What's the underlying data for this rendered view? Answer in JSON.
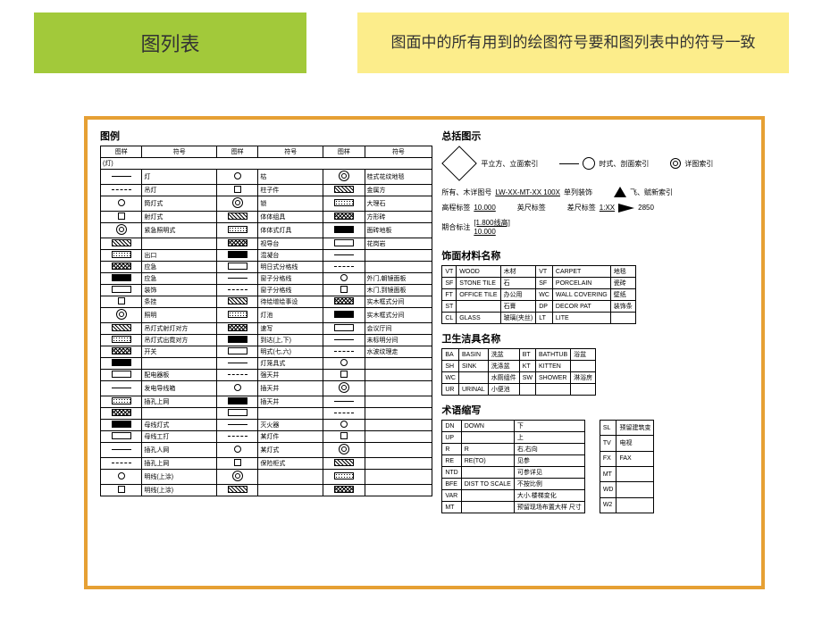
{
  "header": {
    "title_left": "图列表",
    "title_right": "图面中的所有用到的绘图符号要和图列表中的符号一致"
  },
  "legend": {
    "title": "图例",
    "headers": [
      "图样",
      "符号",
      "图样",
      "符号",
      "图样",
      "符号"
    ],
    "groups": [
      {
        "h": "(灯)",
        "rows": [
          [
            "",
            "灯",
            "",
            "枯",
            "",
            "桂式花纹地毯"
          ],
          [
            "",
            "吊灯",
            "",
            "柱子件",
            "",
            "金属方"
          ],
          [
            "",
            "筒灯式",
            "",
            "锁",
            "",
            "大理石"
          ],
          [
            "",
            "射灯式",
            "",
            "体体组具",
            "",
            "方形砖"
          ],
          [
            "",
            "紧急照明式",
            "",
            "体体式灯具",
            "",
            "面砖地板"
          ],
          [
            "(挂)",
            "",
            "",
            "视导台",
            "",
            "花岗岩"
          ],
          [
            "",
            "出口",
            "",
            "混凝台",
            "",
            ""
          ],
          [
            "",
            "应急",
            "",
            "明日式分格线",
            "(门空)",
            ""
          ],
          [
            "",
            "应急",
            "",
            "窗子分格线",
            "",
            "外门,朝镜面板"
          ],
          [
            "",
            "装饰",
            "",
            "窗子分格线",
            "",
            "木门,到镜面板"
          ]
        ]
      },
      {
        "h": "",
        "rows": [
          [
            "",
            "条挂",
            "",
            "待绘增绘事设",
            "",
            "实木框式分间"
          ],
          [
            "",
            "照明",
            "",
            "灯池",
            "",
            "实木框式分间"
          ],
          [
            "",
            "吊灯式射灯对方",
            "S",
            "速写",
            "",
            "会议厅间"
          ],
          [
            "",
            "吊灯式出霓对方",
            "至",
            "到达(上,下)",
            "",
            "未标明分间"
          ],
          [
            "",
            "开关",
            "",
            "明式(七,六)",
            "",
            "水波纹理走"
          ],
          [
            "(配室)",
            "",
            "",
            "灯笼具式",
            "(各型建筑材料缩写)",
            ""
          ],
          [
            "",
            "配电器板",
            "",
            "强天井",
            "",
            ""
          ],
          [
            "",
            "发电导线箱",
            "",
            "插天井",
            "",
            ""
          ]
        ]
      },
      {
        "h": "",
        "rows": [
          [
            "",
            "插孔上网",
            "",
            "插天井",
            "(装空)",
            ""
          ],
          [
            "",
            "",
            "(总线)",
            "",
            "",
            ""
          ],
          [
            "",
            "母线灯式",
            "",
            "灭火器",
            "",
            ""
          ],
          [
            "",
            "母线工打",
            "",
            "某灯件",
            "",
            ""
          ],
          [
            "",
            "插孔人网",
            "",
            "某灯式",
            "",
            ""
          ],
          [
            "",
            "插孔上网",
            "",
            "保险柜式",
            "",
            ""
          ],
          [
            "",
            "明线(上涂)",
            "",
            "",
            "",
            ""
          ],
          [
            "",
            "明线(上涂)",
            "",
            "",
            "",
            ""
          ]
        ]
      }
    ]
  },
  "general": {
    "title": "总括图示",
    "rows": [
      [
        {
          "label": "平立方、立面索引",
          "sym": "diamond"
        },
        {
          "label": "时式、剖面索引",
          "sym": "circ-line"
        },
        {
          "label": "详图索引",
          "sym": "dbl-circ"
        }
      ],
      [
        {
          "label": "所有、木详图号",
          "value": "LW-XX-MT-XX 100X",
          "extra": "单列装饰"
        },
        {
          "label": "",
          "sym": "tri",
          "extra": "飞、赋新索引"
        }
      ],
      [
        {
          "label": "高程标签",
          "value": "10.000"
        },
        {
          "label": "英尺标签",
          "value": ""
        },
        {
          "label": "差尺标签",
          "value": "1:XX",
          "sym": "arrow",
          "extra": "2850"
        }
      ],
      [
        {
          "label": "期合标注",
          "value": "[1.800线高]\n10.000"
        }
      ]
    ]
  },
  "materials": {
    "title": "饰面材料名称",
    "rows": [
      [
        "VT",
        "WOOD",
        "木材",
        "VT",
        "CARPET",
        "地毯"
      ],
      [
        "SF",
        "STONE TILE",
        "石",
        "SF",
        "PORCELAIN",
        "瓷砖"
      ],
      [
        "FT",
        "OFFICE TILE",
        "办公用",
        "WC",
        "WALL COVERING",
        "壁纸"
      ],
      [
        "ST",
        "",
        "石膏",
        "DP",
        "DECOR PAT",
        "装饰条"
      ],
      [
        "CL",
        "GLASS",
        "玻璃(夹丝)",
        "LT",
        "LITE",
        ""
      ]
    ]
  },
  "sanitary": {
    "title": "卫生洁具名称",
    "rows": [
      [
        "BA",
        "BASIN",
        "洗盆",
        "BT",
        "BATHTUB",
        "浴盆"
      ],
      [
        "SH",
        "SINK",
        "洗涤盆",
        "KT",
        "KITTEN",
        ""
      ],
      [
        "WC",
        "",
        "水厕组件",
        "SW",
        "SHOWER",
        "淋浴房"
      ],
      [
        "UR",
        "URINAL",
        "小便池",
        "",
        "",
        ""
      ]
    ]
  },
  "abbrev": {
    "title": "术语缩写",
    "left": [
      [
        "DN",
        "DOWN",
        "下"
      ],
      [
        "UP",
        "",
        "上"
      ],
      [
        "R",
        "R",
        "右,右向"
      ],
      [
        "RE",
        "RE(TO)",
        "见参"
      ],
      [
        "NTD",
        "",
        "可参详见"
      ],
      [
        "BFE",
        "DIST TO SCALE",
        "不按比例"
      ],
      [
        "VAR",
        "",
        "大小.楼梯变化"
      ],
      [
        "MT",
        "",
        "预留现场布置大样 尺寸"
      ]
    ],
    "right": [
      [
        "SL",
        "预留建筑变"
      ],
      [
        "TV",
        "电视"
      ],
      [
        "FX",
        "FAX"
      ],
      [
        "MT",
        ""
      ],
      [
        "WD",
        ""
      ],
      [
        "W2",
        ""
      ]
    ]
  },
  "styling": {
    "border_color": "#e6a034",
    "green": "#a2c93a",
    "yellow": "#fced8b",
    "font_base": 7
  }
}
